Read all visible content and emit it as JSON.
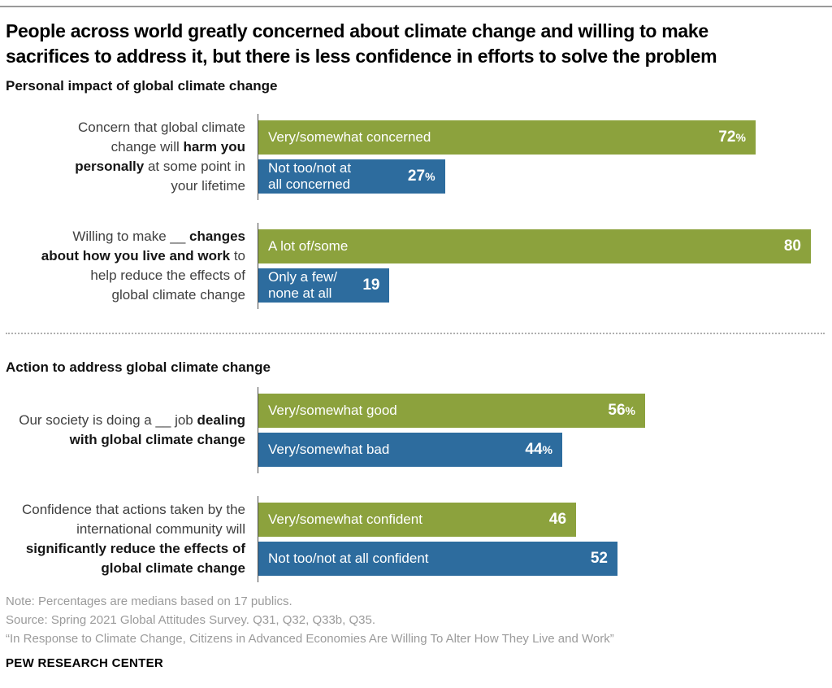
{
  "page": {
    "title_lines": [
      "People across world greatly concerned about climate change and willing to make",
      "sacrifices to address it, but there is less confidence in efforts to solve the problem"
    ]
  },
  "colors": {
    "positive_green": "#8CA23D",
    "negative_blue": "#2D6C9E",
    "axis": "#4A4A4A",
    "note_gray": "#9B9B9B",
    "rule_gray": "#9A9A9A"
  },
  "footer": {
    "note": "Note: Percentages are medians based on 17 publics.",
    "source": "Source: Spring 2021 Global Attitudes Survey. Q31, Q32, Q33b, Q35.",
    "report_title": "“In Response to Climate Change, Citizens in Advanced Economies Are Willing To Alter How They Live and Work”",
    "brand": "PEW RESEARCH CENTER"
  },
  "chart_data": {
    "type": "bar",
    "orientation": "horizontal",
    "xmax": 82,
    "value_unit": "% (medians across 17 publics)",
    "grid": false,
    "legend": "labels printed inside bars",
    "series_legend": [
      {
        "name": "positive response",
        "color": "#8CA23D"
      },
      {
        "name": "negative response",
        "color": "#2D6C9E"
      }
    ],
    "sections": [
      {
        "heading": "Personal impact of global climate change",
        "rows": [
          {
            "question": "Concern that global climate change will harm you personally at some point in your lifetime",
            "question_lines": [
              [
                {
                  "t": "Concern that global climate"
                }
              ],
              [
                {
                  "t": "change will "
                },
                {
                  "t": "harm you",
                  "b": true
                }
              ],
              [
                {
                  "t": "personally",
                  "b": true
                },
                {
                  "t": " at some point in"
                }
              ],
              [
                {
                  "t": "your lifetime"
                }
              ]
            ],
            "bars": [
              {
                "color_key": "green",
                "label": "Very/somewhat concerned",
                "label_lines": [
                  "Very/somewhat concerned"
                ],
                "value": 72,
                "suffix": "%"
              },
              {
                "color_key": "blue",
                "label": "Not too/not at all concerned",
                "label_lines": [
                  "Not too/not at",
                  "all concerned"
                ],
                "value": 27,
                "suffix": "%"
              }
            ]
          },
          {
            "question": "Willing to make __ changes about how you live and work to help reduce the effects of global climate change",
            "question_lines": [
              [
                {
                  "t": "Willing to make __ "
                },
                {
                  "t": "changes",
                  "b": true
                }
              ],
              [
                {
                  "t": "about how you live and work",
                  "b": true
                },
                {
                  "t": " to"
                }
              ],
              [
                {
                  "t": "help reduce the effects of"
                }
              ],
              [
                {
                  "t": "global climate change"
                }
              ]
            ],
            "bars": [
              {
                "color_key": "green",
                "label": "A lot of/some",
                "label_lines": [
                  "A lot of/some"
                ],
                "value": 80,
                "suffix": ""
              },
              {
                "color_key": "blue",
                "label": "Only a few/none at all",
                "label_lines": [
                  "Only a few/",
                  "none at all"
                ],
                "value": 19,
                "suffix": ""
              }
            ]
          }
        ]
      },
      {
        "heading": "Action to address global climate change",
        "rows": [
          {
            "question": "Our society is doing a __ job dealing with global climate change",
            "question_lines": [
              [
                {
                  "t": "Our society is doing a __ job "
                },
                {
                  "t": "dealing",
                  "b": true
                }
              ],
              [
                {
                  "t": "with global climate change",
                  "b": true
                }
              ]
            ],
            "bars": [
              {
                "color_key": "green",
                "label": "Very/somewhat good",
                "label_lines": [
                  "Very/somewhat good"
                ],
                "value": 56,
                "suffix": "%"
              },
              {
                "color_key": "blue",
                "label": "Very/somewhat bad",
                "label_lines": [
                  "Very/somewhat bad"
                ],
                "value": 44,
                "suffix": "%"
              }
            ]
          },
          {
            "question": "Confidence that actions taken by the international community will significantly reduce the effects of global climate change",
            "question_lines": [
              [
                {
                  "t": "Confidence that actions taken by the"
                }
              ],
              [
                {
                  "t": "international community will"
                }
              ],
              [
                {
                  "t": "significantly reduce the effects of",
                  "b": true
                }
              ],
              [
                {
                  "t": "global climate change",
                  "b": true
                }
              ]
            ],
            "bars": [
              {
                "color_key": "green",
                "label": "Very/somewhat confident",
                "label_lines": [
                  "Very/somewhat confident"
                ],
                "value": 46,
                "suffix": ""
              },
              {
                "color_key": "blue",
                "label": "Not too/not at all confident",
                "label_lines": [
                  "Not too/not at all confident"
                ],
                "value": 52,
                "suffix": ""
              }
            ]
          }
        ]
      }
    ]
  }
}
